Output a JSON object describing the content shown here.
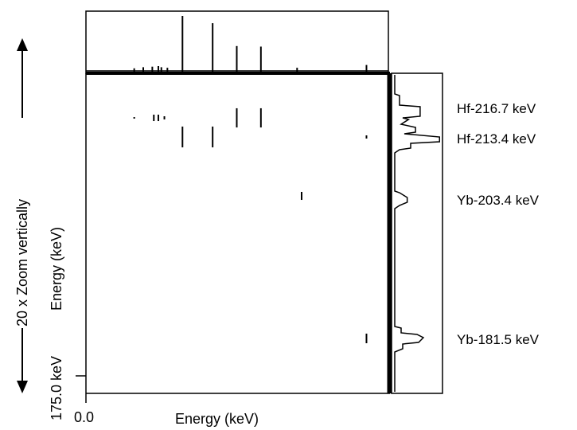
{
  "chart_data": {
    "type": "heatmap",
    "title": "",
    "xlabel": "Energy (keV)",
    "ylabel": "Energy (keV)",
    "x_tick_labels": [
      "0.0"
    ],
    "y_tick_labels": [
      "175.0 keV"
    ],
    "zoom_note": "20 x Zoom vertically",
    "grid": false,
    "peak_labels": [
      {
        "text": "Hf-216.7 keV",
        "energy": 216.7
      },
      {
        "text": "Hf-213.4 keV",
        "energy": 213.4
      },
      {
        "text": "Yb-203.4 keV",
        "energy": 203.4
      },
      {
        "text": "Yb-181.5 keV",
        "energy": 181.5
      }
    ],
    "top_projection": {
      "x_fraction": [
        0.16,
        0.19,
        0.22,
        0.24,
        0.25,
        0.27,
        0.32,
        0.42,
        0.5,
        0.58,
        0.7,
        0.93
      ],
      "height_fraction": [
        0.06,
        0.08,
        0.09,
        0.1,
        0.08,
        0.07,
        1.0,
        0.87,
        0.46,
        0.45,
        0.07,
        0.12
      ]
    },
    "coincidence_marks": {
      "rows": [
        {
          "energy": 216.7,
          "x_fraction": [
            0.21,
            0.47,
            0.58
          ],
          "marks": [
            {
              "x": 0.16,
              "len": 0.005
            },
            {
              "x": 0.225,
              "len": 0.02
            },
            {
              "x": 0.24,
              "len": 0.02
            },
            {
              "x": 0.26,
              "len": 0.01
            },
            {
              "x": 0.5,
              "len": 0.06
            },
            {
              "x": 0.58,
              "len": 0.06
            }
          ]
        },
        {
          "energy": 213.4,
          "marks": [
            {
              "x": 0.32,
              "len": 0.065
            },
            {
              "x": 0.42,
              "len": 0.065
            },
            {
              "x": 0.93,
              "len": 0.01
            }
          ]
        },
        {
          "energy": 203.4,
          "marks": [
            {
              "x": 0.715,
              "len": 0.025
            }
          ]
        },
        {
          "energy": 181.5,
          "marks": [
            {
              "x": 0.93,
              "len": 0.03
            }
          ]
        }
      ]
    },
    "y_range": [
      175.0,
      221.0
    ],
    "right_projection": {
      "energy": [
        216.7,
        216.0,
        214.8,
        213.4,
        203.4,
        181.5
      ],
      "width_fraction": [
        0.55,
        0.3,
        0.45,
        0.97,
        0.27,
        0.62
      ]
    }
  }
}
